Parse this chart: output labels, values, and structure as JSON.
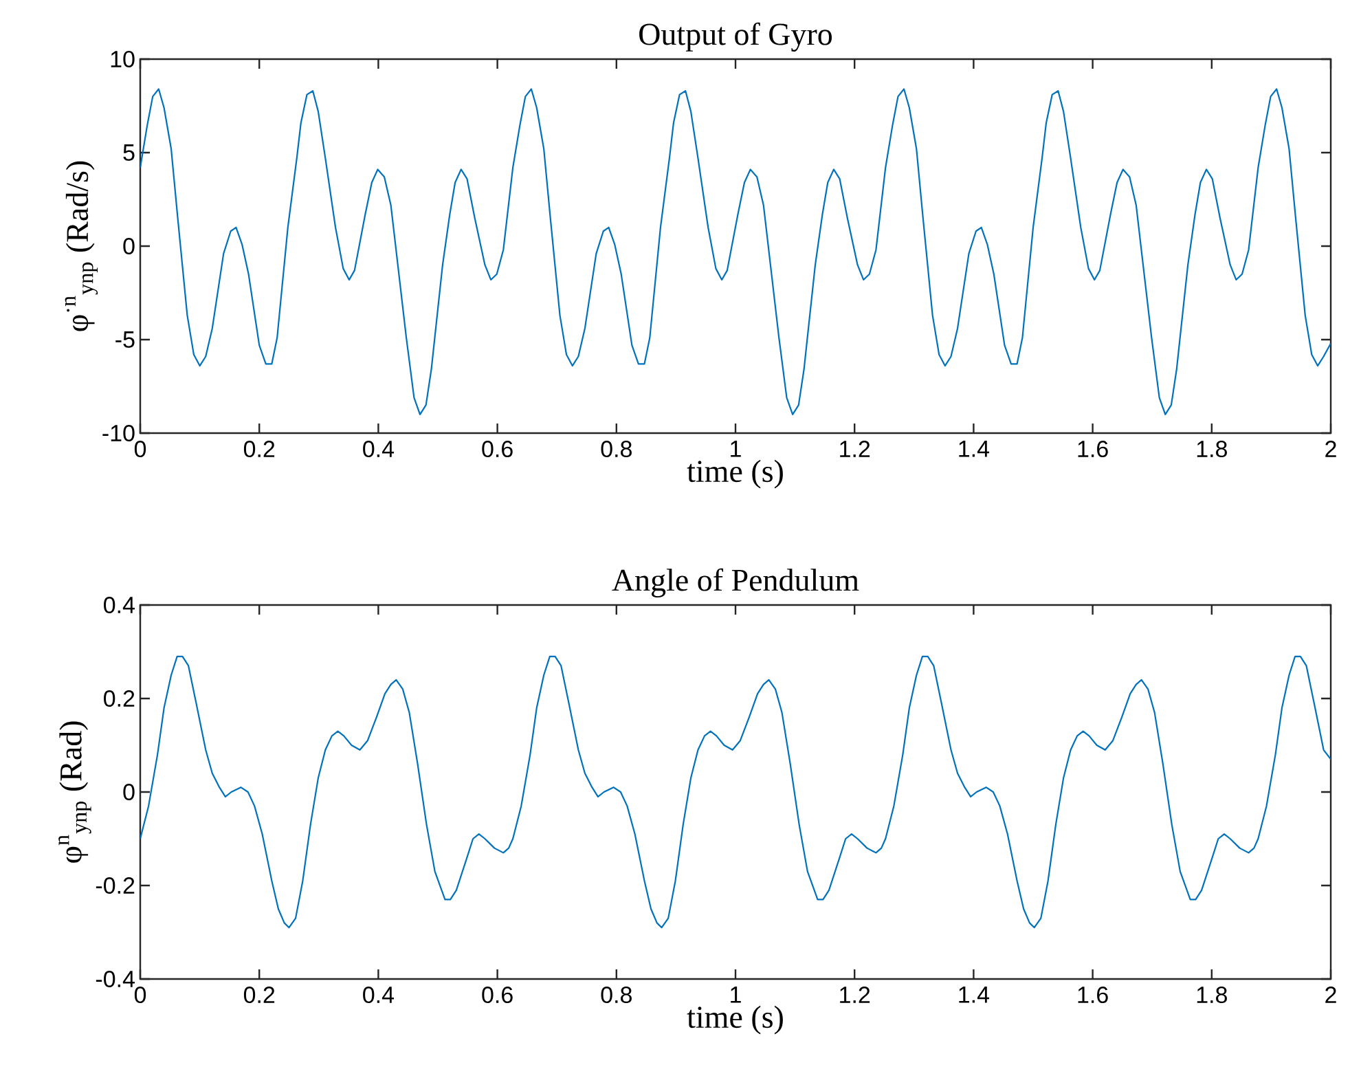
{
  "chart_data": [
    {
      "type": "line",
      "title": "Output of Gyro",
      "xlabel": "time (s)",
      "ylabel": "φ$^{·n}$$_{ynp}$  (Rad/s)",
      "xlim": [
        0,
        2
      ],
      "xticks": [
        0,
        0.2,
        0.4,
        0.6,
        0.8,
        1,
        1.2,
        1.4,
        1.6,
        1.8,
        2
      ],
      "ylim": [
        -10,
        10
      ],
      "yticks": [
        -10,
        -5,
        0,
        5,
        10
      ],
      "color": "#0072bd",
      "x": [
        0,
        0.012,
        0.021,
        0.031,
        0.04,
        0.052,
        0.063,
        0.079,
        0.09,
        0.1,
        0.11,
        0.121,
        0.14,
        0.152,
        0.161,
        0.171,
        0.182,
        0.2,
        0.211,
        0.221,
        0.23,
        0.248,
        0.263,
        0.27,
        0.28,
        0.29,
        0.299,
        0.311,
        0.328,
        0.341,
        0.351,
        0.36,
        0.378,
        0.389,
        0.399,
        0.41,
        0.421,
        0.447,
        0.46,
        0.47,
        0.48,
        0.489,
        0.508,
        0.52,
        0.529,
        0.539,
        0.549,
        0.562,
        0.579,
        0.589,
        0.599,
        0.61,
        0.626,
        0.638,
        0.647,
        0.657,
        0.666,
        0.678,
        0.689,
        0.705,
        0.716,
        0.726,
        0.736,
        0.747,
        0.766,
        0.778,
        0.787,
        0.797,
        0.808,
        0.826,
        0.837,
        0.847,
        0.856,
        0.874,
        0.889,
        0.896,
        0.906,
        0.916,
        0.925,
        0.937,
        0.954,
        0.967,
        0.977,
        0.986,
        1.004,
        1.015,
        1.025,
        1.036,
        1.047,
        1.073,
        1.086,
        1.096,
        1.106,
        1.115,
        1.134,
        1.146,
        1.155,
        1.165,
        1.175,
        1.188,
        1.205,
        1.215,
        1.225,
        1.236,
        1.252,
        1.264,
        1.273,
        1.283,
        1.292,
        1.304,
        1.315,
        1.331,
        1.342,
        1.352,
        1.362,
        1.373,
        1.392,
        1.404,
        1.413,
        1.423,
        1.434,
        1.452,
        1.463,
        1.473,
        1.482,
        1.5,
        1.515,
        1.522,
        1.532,
        1.542,
        1.551,
        1.563,
        1.58,
        1.593,
        1.603,
        1.612,
        1.63,
        1.641,
        1.651,
        1.662,
        1.673,
        1.699,
        1.712,
        1.722,
        1.732,
        1.741,
        1.76,
        1.772,
        1.781,
        1.791,
        1.801,
        1.814,
        1.831,
        1.841,
        1.851,
        1.862,
        1.878,
        1.89,
        1.899,
        1.909,
        1.918,
        1.93,
        1.941,
        1.957,
        1.968,
        1.978,
        1.988,
        2
      ],
      "values": [
        4.2,
        6.5,
        8.0,
        8.4,
        7.4,
        5.2,
        1.5,
        -3.7,
        -5.8,
        -6.4,
        -5.9,
        -4.4,
        -0.4,
        0.8,
        1.0,
        0.1,
        -1.5,
        -5.3,
        -6.3,
        -6.3,
        -4.9,
        1.0,
        4.7,
        6.6,
        8.1,
        8.3,
        7.2,
        4.7,
        1.0,
        -1.2,
        -1.8,
        -1.3,
        1.7,
        3.4,
        4.1,
        3.7,
        2.2,
        -4.9,
        -8.1,
        -9.0,
        -8.5,
        -6.6,
        -1.0,
        1.7,
        3.4,
        4.1,
        3.6,
        1.5,
        -1.0,
        -1.8,
        -1.5,
        -0.2,
        4.2,
        6.5,
        8.0,
        8.4,
        7.4,
        5.2,
        1.5,
        -3.7,
        -5.8,
        -6.4,
        -5.9,
        -4.4,
        -0.4,
        0.8,
        1.0,
        0.1,
        -1.5,
        -5.3,
        -6.3,
        -6.3,
        -4.9,
        1.0,
        4.7,
        6.6,
        8.1,
        8.3,
        7.2,
        4.7,
        1.0,
        -1.2,
        -1.8,
        -1.3,
        1.7,
        3.4,
        4.1,
        3.7,
        2.2,
        -4.9,
        -8.1,
        -9.0,
        -8.5,
        -6.6,
        -1.0,
        1.7,
        3.4,
        4.1,
        3.6,
        1.5,
        -1.0,
        -1.8,
        -1.5,
        -0.2,
        4.2,
        6.5,
        8.0,
        8.4,
        7.4,
        5.2,
        1.5,
        -3.7,
        -5.8,
        -6.4,
        -5.9,
        -4.4,
        -0.4,
        0.8,
        1.0,
        0.1,
        -1.5,
        -5.3,
        -6.3,
        -6.3,
        -4.9,
        1.0,
        4.7,
        6.6,
        8.1,
        8.3,
        7.2,
        4.7,
        1.0,
        -1.2,
        -1.8,
        -1.3,
        1.7,
        3.4,
        4.1,
        3.7,
        2.2,
        -4.9,
        -8.1,
        -9.0,
        -8.5,
        -6.6,
        -1.0,
        1.7,
        3.4,
        4.1,
        3.6,
        1.5,
        -1.0,
        -1.8,
        -1.5,
        -0.2,
        4.2,
        6.5,
        8.0,
        8.4,
        7.4,
        5.2,
        1.5,
        -3.7,
        -5.8,
        -6.4,
        -5.9,
        -5.2
      ]
    },
    {
      "type": "line",
      "title": "Angle of Pendulum",
      "xlabel": "time (s)",
      "ylabel": "φ$^{n}$$_{ynp}$  (Rad)",
      "xlim": [
        0,
        2
      ],
      "xticks": [
        0,
        0.2,
        0.4,
        0.6,
        0.8,
        1,
        1.2,
        1.4,
        1.6,
        1.8,
        2
      ],
      "ylim": [
        -0.4,
        0.4
      ],
      "yticks": [
        -0.4,
        -0.2,
        0,
        0.2,
        0.4
      ],
      "color": "#0072bd",
      "x": [
        0,
        0.014,
        0.029,
        0.04,
        0.052,
        0.062,
        0.071,
        0.081,
        0.094,
        0.11,
        0.121,
        0.133,
        0.143,
        0.153,
        0.169,
        0.181,
        0.192,
        0.205,
        0.221,
        0.232,
        0.242,
        0.25,
        0.261,
        0.273,
        0.286,
        0.299,
        0.311,
        0.322,
        0.332,
        0.342,
        0.355,
        0.369,
        0.382,
        0.397,
        0.411,
        0.421,
        0.43,
        0.441,
        0.452,
        0.466,
        0.481,
        0.495,
        0.512,
        0.521,
        0.531,
        0.549,
        0.559,
        0.569,
        0.579,
        0.595,
        0.61,
        0.619,
        0.626,
        0.64,
        0.655,
        0.666,
        0.678,
        0.688,
        0.697,
        0.707,
        0.72,
        0.736,
        0.747,
        0.759,
        0.769,
        0.779,
        0.795,
        0.807,
        0.818,
        0.831,
        0.847,
        0.858,
        0.868,
        0.876,
        0.887,
        0.899,
        0.912,
        0.925,
        0.937,
        0.948,
        0.958,
        0.968,
        0.981,
        0.995,
        1.008,
        1.023,
        1.037,
        1.047,
        1.056,
        1.067,
        1.078,
        1.092,
        1.107,
        1.121,
        1.138,
        1.147,
        1.157,
        1.175,
        1.185,
        1.195,
        1.205,
        1.221,
        1.236,
        1.245,
        1.252,
        1.266,
        1.281,
        1.292,
        1.304,
        1.314,
        1.323,
        1.333,
        1.346,
        1.362,
        1.373,
        1.385,
        1.395,
        1.405,
        1.421,
        1.433,
        1.444,
        1.457,
        1.473,
        1.484,
        1.494,
        1.502,
        1.513,
        1.525,
        1.538,
        1.551,
        1.563,
        1.574,
        1.584,
        1.594,
        1.607,
        1.621,
        1.634,
        1.649,
        1.663,
        1.673,
        1.682,
        1.693,
        1.704,
        1.718,
        1.733,
        1.747,
        1.764,
        1.773,
        1.783,
        1.801,
        1.811,
        1.821,
        1.831,
        1.847,
        1.862,
        1.871,
        1.878,
        1.892,
        1.907,
        1.918,
        1.93,
        1.94,
        1.949,
        1.959,
        1.972,
        1.988,
        2
      ],
      "values": [
        -0.1,
        -0.03,
        0.08,
        0.18,
        0.25,
        0.29,
        0.29,
        0.27,
        0.19,
        0.09,
        0.04,
        0.01,
        -0.01,
        0,
        0.01,
        0,
        -0.03,
        -0.09,
        -0.19,
        -0.25,
        -0.28,
        -0.29,
        -0.27,
        -0.19,
        -0.07,
        0.03,
        0.09,
        0.12,
        0.13,
        0.12,
        0.1,
        0.09,
        0.11,
        0.16,
        0.21,
        0.23,
        0.24,
        0.22,
        0.17,
        0.06,
        -0.07,
        -0.17,
        -0.23,
        -0.23,
        -0.21,
        -0.14,
        -0.1,
        -0.09,
        -0.1,
        -0.12,
        -0.13,
        -0.12,
        -0.1,
        -0.03,
        0.08,
        0.18,
        0.25,
        0.29,
        0.29,
        0.27,
        0.19,
        0.09,
        0.04,
        0.01,
        -0.01,
        0,
        0.01,
        0,
        -0.03,
        -0.09,
        -0.19,
        -0.25,
        -0.28,
        -0.29,
        -0.27,
        -0.19,
        -0.07,
        0.03,
        0.09,
        0.12,
        0.13,
        0.12,
        0.1,
        0.09,
        0.11,
        0.16,
        0.21,
        0.23,
        0.24,
        0.22,
        0.17,
        0.06,
        -0.07,
        -0.17,
        -0.23,
        -0.23,
        -0.21,
        -0.14,
        -0.1,
        -0.09,
        -0.1,
        -0.12,
        -0.13,
        -0.12,
        -0.1,
        -0.03,
        0.08,
        0.18,
        0.25,
        0.29,
        0.29,
        0.27,
        0.19,
        0.09,
        0.04,
        0.01,
        -0.01,
        0,
        0.01,
        0,
        -0.03,
        -0.09,
        -0.19,
        -0.25,
        -0.28,
        -0.29,
        -0.27,
        -0.19,
        -0.07,
        0.03,
        0.09,
        0.12,
        0.13,
        0.12,
        0.1,
        0.09,
        0.11,
        0.16,
        0.21,
        0.23,
        0.24,
        0.22,
        0.17,
        0.06,
        -0.07,
        -0.17,
        -0.23,
        -0.23,
        -0.21,
        -0.14,
        -0.1,
        -0.09,
        -0.1,
        -0.12,
        -0.13,
        -0.12,
        -0.1,
        -0.03,
        0.08,
        0.18,
        0.25,
        0.29,
        0.29,
        0.27,
        0.19,
        0.09,
        0.07
      ]
    }
  ]
}
